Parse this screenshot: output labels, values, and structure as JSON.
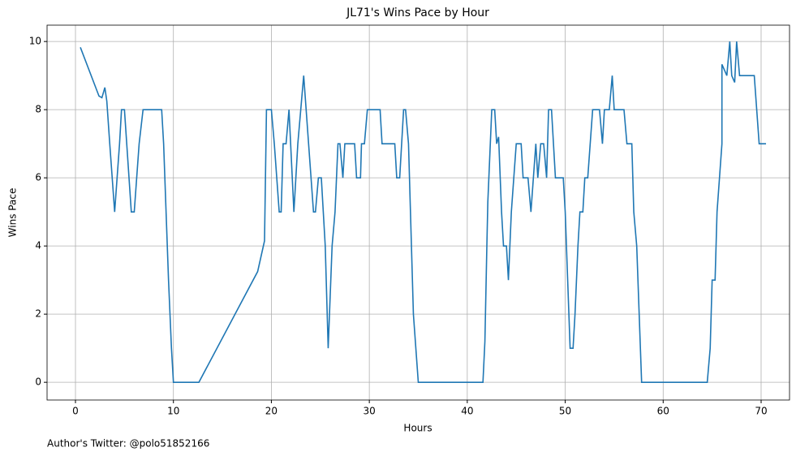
{
  "chart_data": {
    "type": "line",
    "title": "JL71's Wins Pace by Hour",
    "x_label": "Hours",
    "y_label": "Wins Pace",
    "footnote": "Author's Twitter: @polo51852166",
    "x": [
      0.5,
      2.4,
      2.7,
      3.0,
      3.2,
      3.5,
      4.0,
      4.5,
      4.7,
      5.0,
      5.7,
      6.0,
      6.5,
      6.9,
      8.8,
      9.0,
      9.5,
      9.8,
      10.0,
      12.6,
      18.6,
      19.3,
      19.5,
      20.0,
      20.3,
      20.8,
      21.0,
      21.2,
      21.5,
      21.8,
      22.3,
      22.7,
      23.3,
      23.8,
      24.3,
      24.5,
      24.8,
      25.1,
      25.5,
      25.8,
      26.2,
      26.5,
      26.8,
      27.0,
      27.3,
      27.5,
      28.5,
      28.7,
      29.1,
      29.2,
      29.5,
      29.8,
      31.1,
      31.3,
      32.6,
      32.8,
      33.1,
      33.5,
      33.7,
      34.0,
      34.3,
      34.5,
      35.0,
      41.6,
      41.8,
      42.0,
      42.1,
      42.5,
      42.8,
      43.0,
      43.2,
      43.5,
      43.7,
      44.0,
      44.2,
      44.5,
      45.0,
      45.5,
      45.7,
      46.2,
      46.5,
      47.0,
      47.2,
      47.5,
      47.8,
      48.1,
      48.3,
      48.6,
      49.0,
      49.8,
      50.0,
      50.5,
      50.8,
      51.0,
      51.3,
      51.5,
      51.8,
      52.0,
      52.3,
      52.8,
      53.5,
      53.8,
      54.0,
      54.5,
      54.8,
      55.0,
      56.0,
      56.3,
      56.8,
      57.0,
      57.3,
      57.8,
      64.5,
      64.8,
      65.0,
      65.3,
      65.5,
      66.0,
      66.0,
      66.5,
      66.8,
      67.0,
      67.3,
      67.5,
      67.8,
      69.3,
      69.8,
      70.5
    ],
    "series": [
      {
        "name": "Wins Pace",
        "color": "#1f77b4",
        "values": [
          9.83,
          8.4,
          8.35,
          8.65,
          8.25,
          7,
          5,
          7,
          8,
          8,
          5,
          5,
          7,
          8,
          8,
          7,
          3,
          1,
          0,
          0,
          3.25,
          4.15,
          8,
          8,
          7,
          5,
          5,
          7,
          7,
          8,
          5,
          7,
          9,
          7,
          5,
          5,
          6,
          6,
          4,
          1,
          4,
          5,
          7,
          7,
          6,
          7,
          7,
          6,
          6,
          7,
          7,
          8,
          8,
          7,
          7,
          6,
          6,
          8,
          8,
          7,
          4,
          2,
          0,
          0,
          1.2,
          4,
          5.3,
          8,
          8,
          7,
          7.2,
          5,
          4,
          4,
          3,
          5,
          7,
          7,
          6,
          6,
          5,
          7,
          6,
          7,
          7,
          6,
          8,
          8,
          6,
          6,
          5,
          1,
          1,
          2,
          4,
          5,
          5,
          6,
          6,
          8,
          8,
          7,
          8,
          8,
          9,
          8,
          8,
          7,
          7,
          5,
          4,
          0,
          0,
          1,
          3,
          3,
          5,
          7,
          9.33,
          9,
          10,
          9,
          8.8,
          10,
          9,
          9,
          7,
          7
        ]
      }
    ],
    "xlim": [
      -2.9,
      72.9
    ],
    "ylim": [
      -0.52,
      10.48
    ],
    "xticks": [
      0,
      10,
      20,
      30,
      40,
      50,
      60,
      70
    ],
    "yticks": [
      0,
      2,
      4,
      6,
      8,
      10
    ],
    "grid": true
  }
}
